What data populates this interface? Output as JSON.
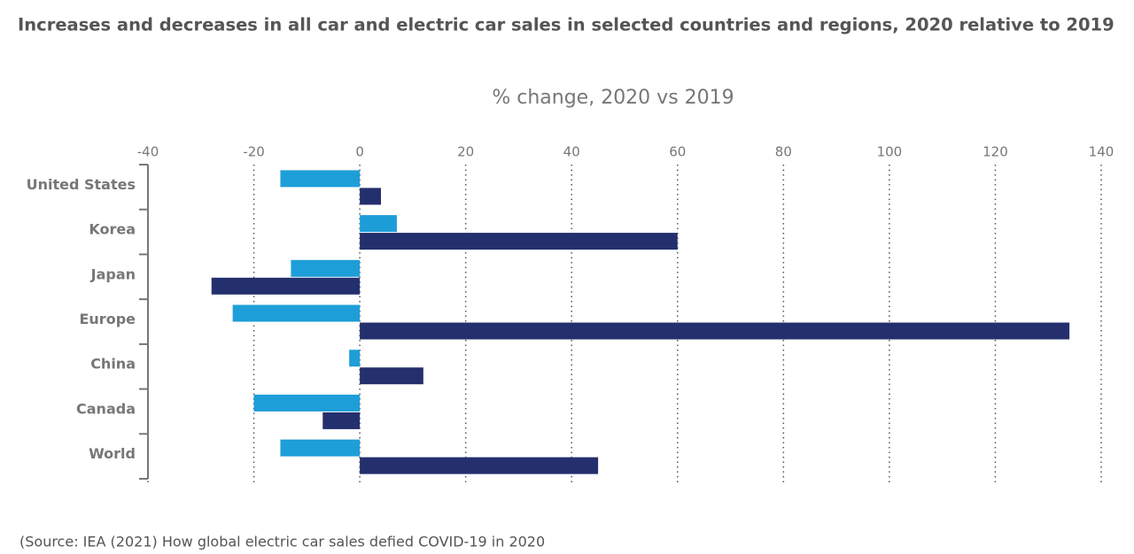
{
  "chart_data": {
    "type": "bar",
    "orientation": "horizontal",
    "title": "Increases and decreases in all car and electric car sales in selected countries and regions, 2020 relative to 2019",
    "subtitle": "% change, 2020 vs 2019",
    "source": "(Source: IEA (2021) How global electric car sales defied COVID-19 in 2020",
    "categories": [
      "United States",
      "Korea",
      "Japan",
      "Europe",
      "China",
      "Canada",
      "World"
    ],
    "series": [
      {
        "color": "#1e9ed8",
        "values": [
          -15,
          7,
          -13,
          -24,
          -2,
          -20,
          -15
        ]
      },
      {
        "color": "#24306e",
        "values": [
          4,
          60,
          -28,
          134,
          12,
          -7,
          45
        ]
      }
    ],
    "xlim": [
      -40,
      140
    ],
    "xticks": [
      -40,
      -20,
      0,
      20,
      40,
      60,
      80,
      100,
      120,
      140
    ],
    "grid": true
  }
}
